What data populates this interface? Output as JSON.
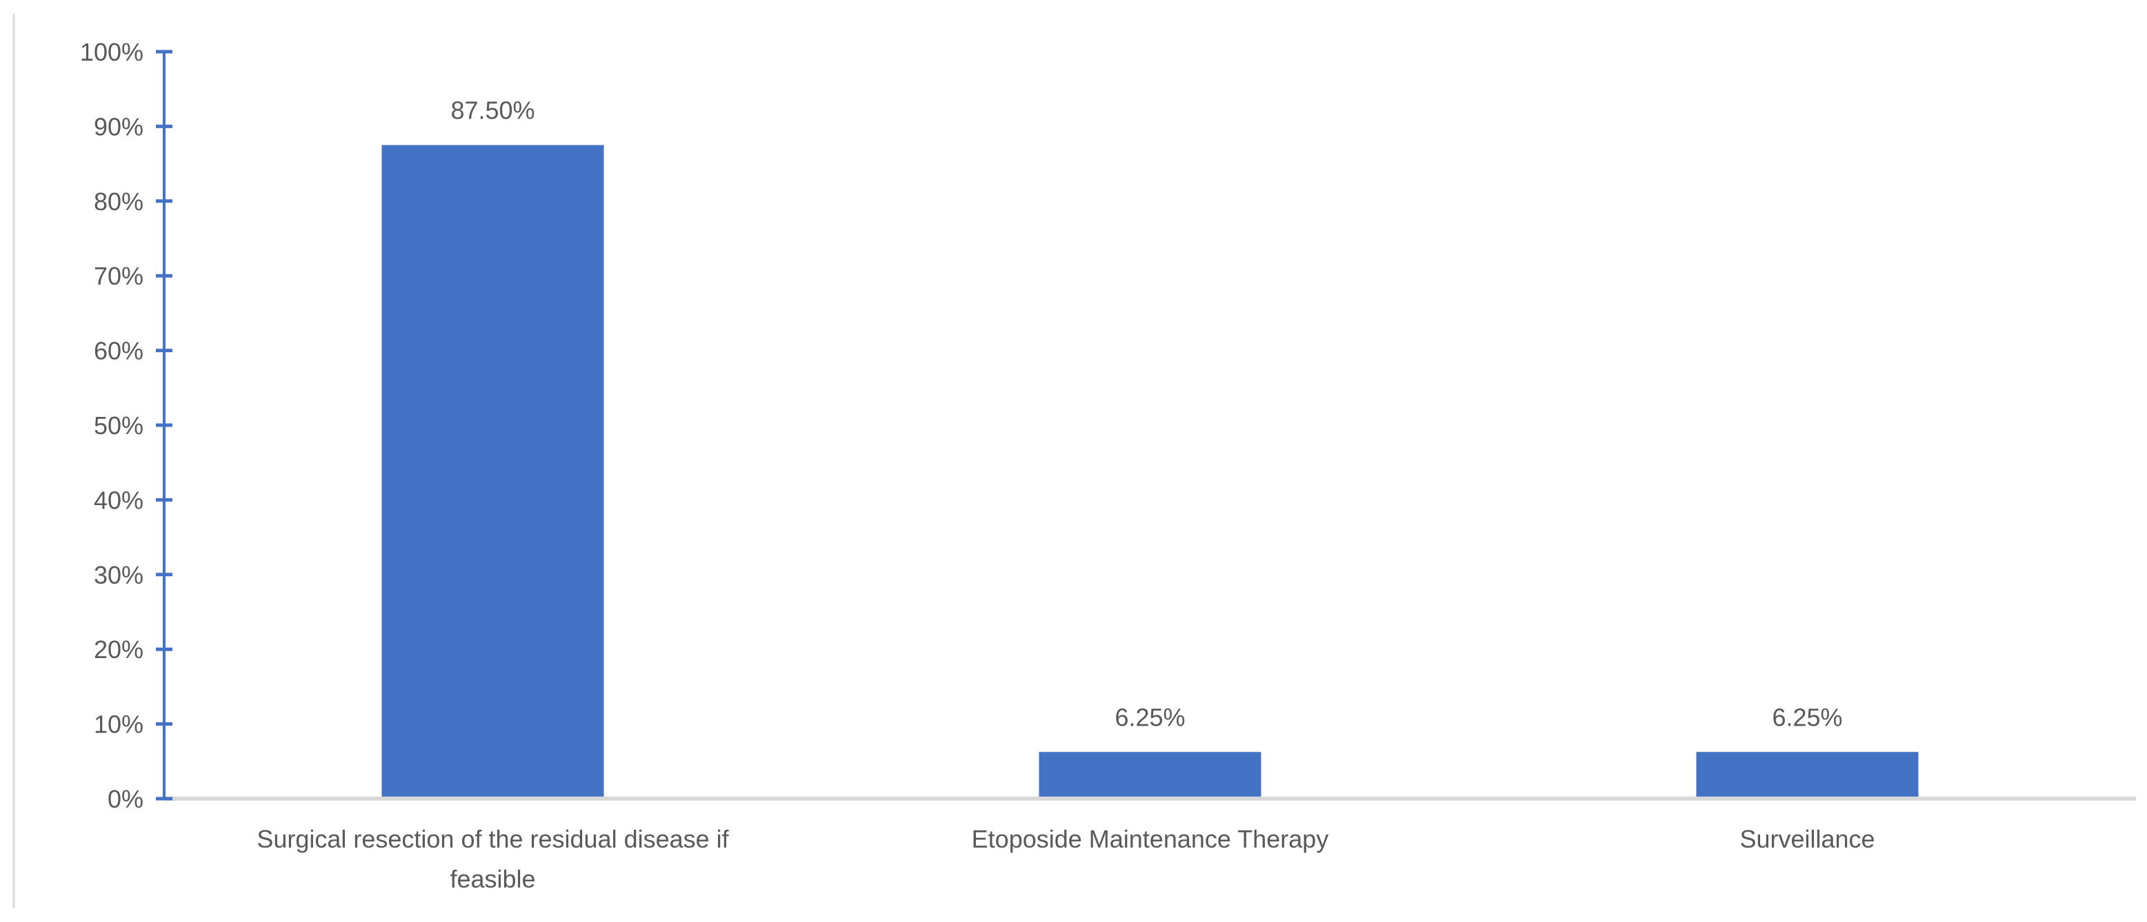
{
  "chart_data": {
    "type": "bar",
    "title": "",
    "xlabel": "",
    "ylabel": "",
    "categories": [
      [
        "Surgical resection of the residual disease if",
        "feasible"
      ],
      [
        "Etoposide Maintenance Therapy"
      ],
      [
        "Surveillance"
      ]
    ],
    "values": [
      87.5,
      6.25,
      6.25
    ],
    "data_labels": [
      "87.50%",
      "6.25%",
      "6.25%"
    ],
    "ylim": [
      0,
      100
    ],
    "yticks": [
      0,
      10,
      20,
      30,
      40,
      50,
      60,
      70,
      80,
      90,
      100
    ],
    "ytick_labels": [
      "0%",
      "10%",
      "20%",
      "30%",
      "40%",
      "50%",
      "60%",
      "70%",
      "80%",
      "90%",
      "100%"
    ],
    "grid": false,
    "legend": "none",
    "colors": {
      "bar": "#4472C4",
      "axis": "#4472C4",
      "baseline": "#D9D9D9",
      "text": "#595959"
    }
  }
}
